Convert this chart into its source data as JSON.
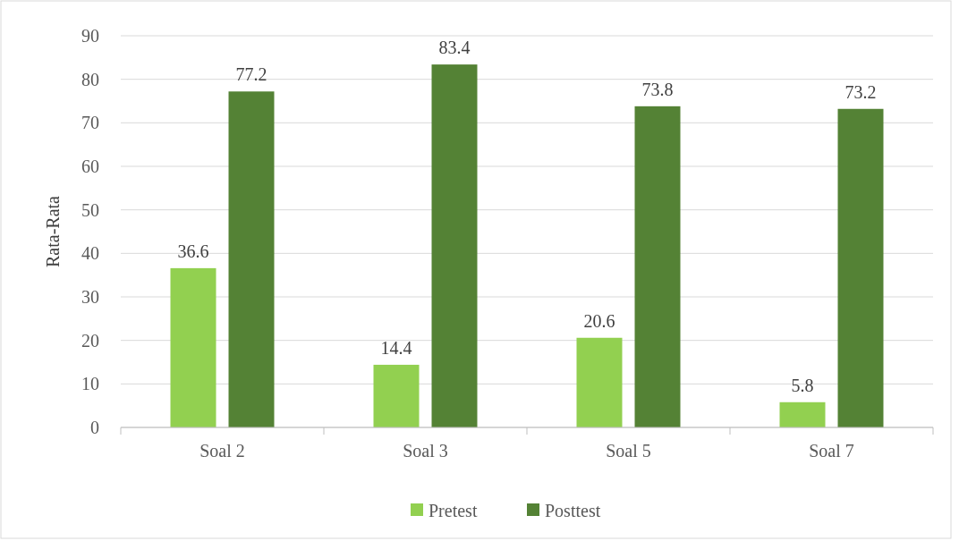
{
  "chart_data": {
    "type": "bar",
    "ylabel": "Rata-Rata",
    "categories": [
      "Soal 2",
      "Soal 3",
      "Soal 5",
      "Soal 7"
    ],
    "series": [
      {
        "name": "Pretest",
        "color": "#92d050",
        "values": [
          36.6,
          14.4,
          20.6,
          5.8
        ]
      },
      {
        "name": "Posttest",
        "color": "#548235",
        "values": [
          77.2,
          83.4,
          73.8,
          73.2
        ]
      }
    ],
    "ylim": [
      0,
      90
    ],
    "yticks": [
      0,
      10,
      20,
      30,
      40,
      50,
      60,
      70,
      80,
      90
    ],
    "grid": "y",
    "legend": "bottom",
    "data_labels": true
  }
}
